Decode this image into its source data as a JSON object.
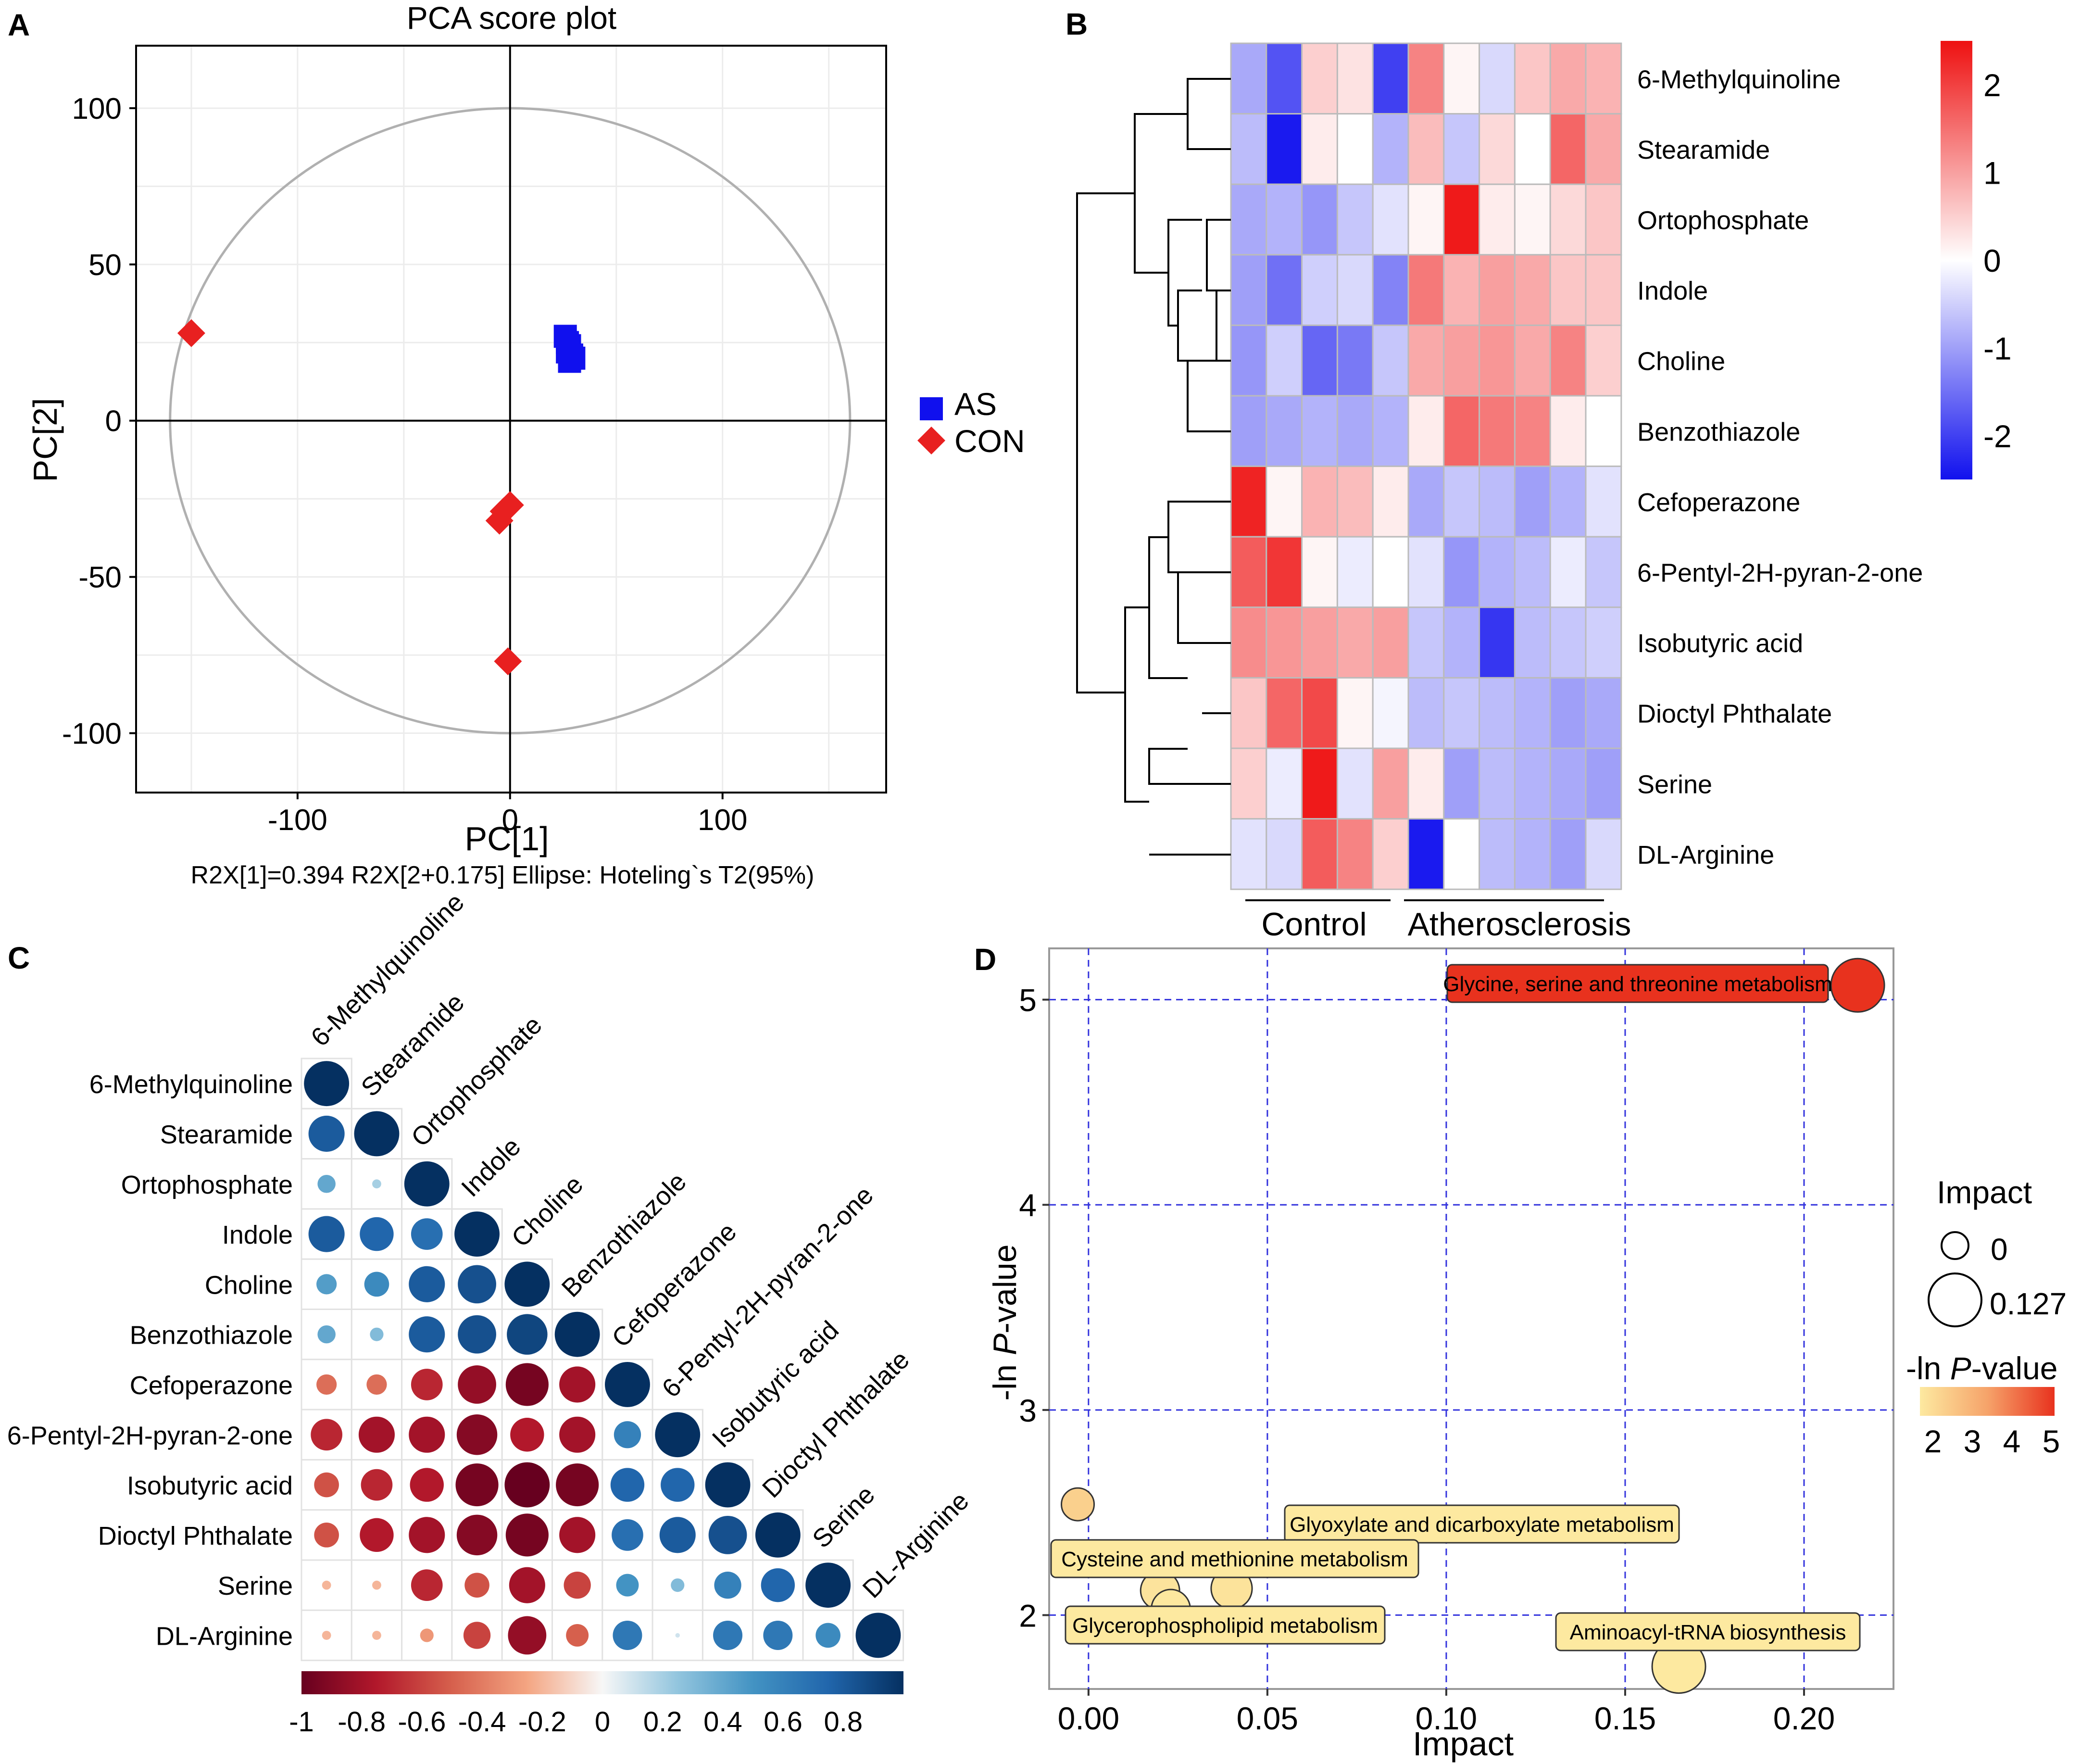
{
  "panel_labels": {
    "a": "A",
    "b": "B",
    "c": "C",
    "d": "D"
  },
  "chart_data": [
    {
      "id": "A",
      "type": "scatter",
      "title": "PCA score plot",
      "xlabel": "PC[1]",
      "ylabel": "PC[2]",
      "caption": "R2X[1]=0.394   R2X[2+0.175] Ellipse: Hoteling`s T2(95%)",
      "xlim": [
        -176,
        177
      ],
      "ylim": [
        -119,
        120
      ],
      "xticks": [
        -100,
        0,
        100
      ],
      "yticks": [
        100,
        50,
        0,
        -50,
        -100
      ],
      "grid": true,
      "ellipse": {
        "rx": 160,
        "ry": 100
      },
      "legend": {
        "position": "right",
        "entries": [
          "AS",
          "CON"
        ]
      },
      "series": [
        {
          "name": "AS",
          "marker": "square",
          "color": "#1010ee",
          "points": [
            [
              26,
              27
            ],
            [
              28,
              24
            ],
            [
              27,
              22
            ],
            [
              29,
              21
            ],
            [
              28,
              19
            ],
            [
              30,
              20
            ],
            [
              27,
              25
            ]
          ]
        },
        {
          "name": "CON",
          "marker": "diamond",
          "color": "#e82020",
          "points": [
            [
              -150,
              28
            ],
            [
              0,
              -27
            ],
            [
              -3,
              -29
            ],
            [
              -5,
              -32
            ],
            [
              -1,
              -77
            ]
          ]
        }
      ]
    },
    {
      "id": "B",
      "type": "heatmap",
      "rows": [
        "6-Methylquinoline",
        "Stearamide",
        "Ortophosphate",
        "Indole",
        "Choline",
        "Benzothiazole",
        "Cefoperazone",
        "6-Pentyl-2H-pyran-2-one",
        "Isobutyric acid",
        "Dioctyl Phthalate",
        "Serine",
        "DL-Arginine"
      ],
      "groups": [
        "Control",
        "Atherosclerosis"
      ],
      "group_sizes": [
        5,
        6
      ],
      "values": [
        [
          -0.9,
          -1.8,
          0.5,
          0.3,
          -2.0,
          1.3,
          0.1,
          -0.4,
          0.6,
          0.9,
          0.8
        ],
        [
          -0.7,
          -2.4,
          0.2,
          0.0,
          -0.8,
          0.7,
          -0.6,
          0.4,
          0.0,
          1.6,
          0.9
        ],
        [
          -0.9,
          -0.8,
          -1.1,
          -0.6,
          -0.3,
          0.1,
          2.4,
          0.2,
          0.1,
          0.4,
          0.6
        ],
        [
          -1.0,
          -1.5,
          -0.5,
          -0.4,
          -1.3,
          1.4,
          0.8,
          1.0,
          0.9,
          0.6,
          0.6
        ],
        [
          -1.1,
          -0.5,
          -1.6,
          -1.4,
          -0.6,
          0.9,
          1.0,
          1.1,
          0.9,
          1.3,
          0.5
        ],
        [
          -1.0,
          -0.9,
          -0.8,
          -0.9,
          -0.8,
          0.2,
          1.6,
          1.4,
          1.3,
          0.2,
          0.0
        ],
        [
          2.3,
          0.1,
          0.8,
          0.7,
          0.2,
          -0.9,
          -0.6,
          -0.7,
          -1.0,
          -0.8,
          -0.3
        ],
        [
          1.7,
          2.1,
          0.1,
          -0.2,
          0.0,
          -0.3,
          -1.1,
          -0.8,
          -0.7,
          -0.2,
          -0.6
        ],
        [
          1.2,
          1.1,
          1.0,
          0.9,
          1.0,
          -0.6,
          -0.8,
          -2.1,
          -0.7,
          -0.6,
          -0.5
        ],
        [
          0.6,
          1.6,
          1.9,
          0.1,
          -0.1,
          -0.7,
          -0.6,
          -0.7,
          -0.8,
          -1.0,
          -0.9
        ],
        [
          0.5,
          -0.2,
          2.4,
          -0.3,
          1.0,
          0.2,
          -1.0,
          -0.7,
          -0.8,
          -0.9,
          -1.0
        ],
        [
          -0.3,
          -0.4,
          1.7,
          1.3,
          0.5,
          -2.4,
          0.0,
          -0.7,
          -0.8,
          -1.0,
          -0.4
        ]
      ],
      "colorbar": {
        "ticks": [
          2,
          1,
          0,
          -1,
          -2
        ],
        "range": [
          -2.5,
          2.5
        ]
      }
    },
    {
      "id": "C",
      "type": "heatmap",
      "variables": [
        "6-Methylquinoline",
        "Stearamide",
        "Ortophosphate",
        "Indole",
        "Choline",
        "Benzothiazole",
        "Cefoperazone",
        "6-Pentyl-2H-pyran-2-one",
        "Isobutyric acid",
        "Dioctyl Phthalate",
        "Serine",
        "DL-Arginine"
      ],
      "lower_triangle": [
        [
          1
        ],
        [
          0.8,
          1
        ],
        [
          0.4,
          0.2,
          1
        ],
        [
          0.8,
          0.75,
          0.7,
          1
        ],
        [
          0.45,
          0.55,
          0.8,
          0.85,
          1
        ],
        [
          0.4,
          0.3,
          0.8,
          0.85,
          0.9,
          1
        ],
        [
          -0.45,
          -0.45,
          -0.7,
          -0.85,
          -0.95,
          -0.8,
          1
        ],
        [
          -0.7,
          -0.8,
          -0.8,
          -0.9,
          -0.75,
          -0.8,
          0.6,
          1
        ],
        [
          -0.55,
          -0.7,
          -0.75,
          -0.95,
          -1.0,
          -0.95,
          0.75,
          0.75,
          1
        ],
        [
          -0.55,
          -0.75,
          -0.8,
          -0.9,
          -0.95,
          -0.8,
          0.7,
          0.8,
          0.85,
          1
        ],
        [
          -0.2,
          -0.2,
          -0.7,
          -0.55,
          -0.8,
          -0.6,
          0.5,
          0.3,
          0.6,
          0.75,
          1
        ],
        [
          -0.2,
          -0.2,
          -0.3,
          -0.6,
          -0.85,
          -0.5,
          0.65,
          0.1,
          0.65,
          0.65,
          0.55,
          1
        ]
      ],
      "colorbar": {
        "ticks": [
          "-1",
          "-0.8",
          "-0.6",
          "-0.4",
          "-0.2",
          "0",
          "0.2",
          "0.4",
          "0.6",
          "0.8"
        ],
        "range": [
          -1,
          1
        ]
      }
    },
    {
      "id": "D",
      "type": "scatter",
      "xlabel": "Impact",
      "ylabel_prefix": "-ln ",
      "ylabel_italic": "P",
      "ylabel_suffix": "-value",
      "xlim": [
        -0.011,
        0.225
      ],
      "ylim": [
        1.64,
        5.25
      ],
      "xticks": [
        "0.00",
        "0.05",
        "0.10",
        "0.15",
        "0.20"
      ],
      "yticks": [
        "5",
        "4",
        "3",
        "2"
      ],
      "points": [
        {
          "label": "Glycine, serine and threonine metabolism",
          "impact": 0.215,
          "neglogp": 5.07,
          "size": 0.05
        },
        {
          "label": "",
          "impact": -0.003,
          "neglogp": 2.54,
          "size": 0.0
        },
        {
          "label": "Glyoxylate and dicarboxylate metabolism",
          "impact": 0.04,
          "neglogp": 2.13,
          "size": 0.02
        },
        {
          "label": "Cysteine and methionine metabolism",
          "impact": 0.02,
          "neglogp": 2.12,
          "size": 0.015
        },
        {
          "label": "Glycerophospholipid metabolism",
          "impact": 0.023,
          "neglogp": 2.03,
          "size": 0.015
        },
        {
          "label": "Aminoacyl-tRNA biosynthesis",
          "impact": 0.165,
          "neglogp": 1.75,
          "size": 0.05
        }
      ],
      "legend_size": {
        "title": "Impact",
        "entries": [
          "0",
          "0.127"
        ]
      },
      "legend_color": {
        "title_prefix": "-ln ",
        "title_italic": "P",
        "title_suffix": "-value",
        "ticks": [
          "2",
          "3",
          "4",
          "5"
        ]
      }
    }
  ]
}
